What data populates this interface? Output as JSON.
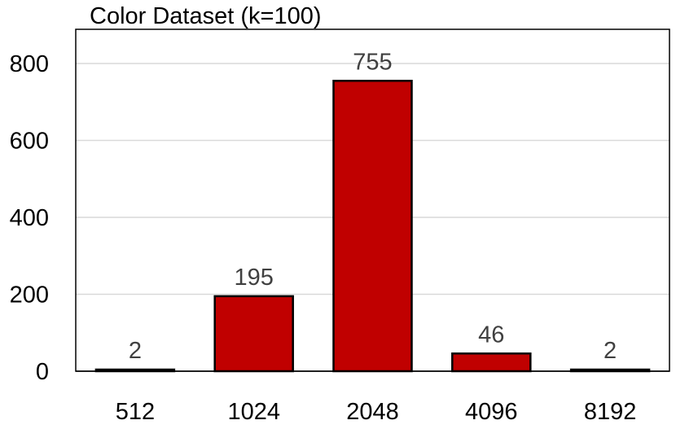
{
  "chart_data": {
    "type": "bar",
    "title": "Color Dataset (k=100)",
    "categories": [
      "512",
      "1024",
      "2048",
      "4096",
      "8192"
    ],
    "values": [
      2,
      195,
      755,
      46,
      2
    ],
    "data_labels": [
      "2",
      "195",
      "755",
      "46",
      "2"
    ],
    "y_ticks": [
      "0",
      "200",
      "400",
      "600",
      "800"
    ],
    "ylim": [
      0,
      800
    ],
    "grid": true,
    "legend": "none",
    "colors": {
      "bar_fill": "#c00000",
      "bar_stroke": "#000000",
      "grid": "#d9d9d9",
      "data_label": "#404040"
    }
  }
}
